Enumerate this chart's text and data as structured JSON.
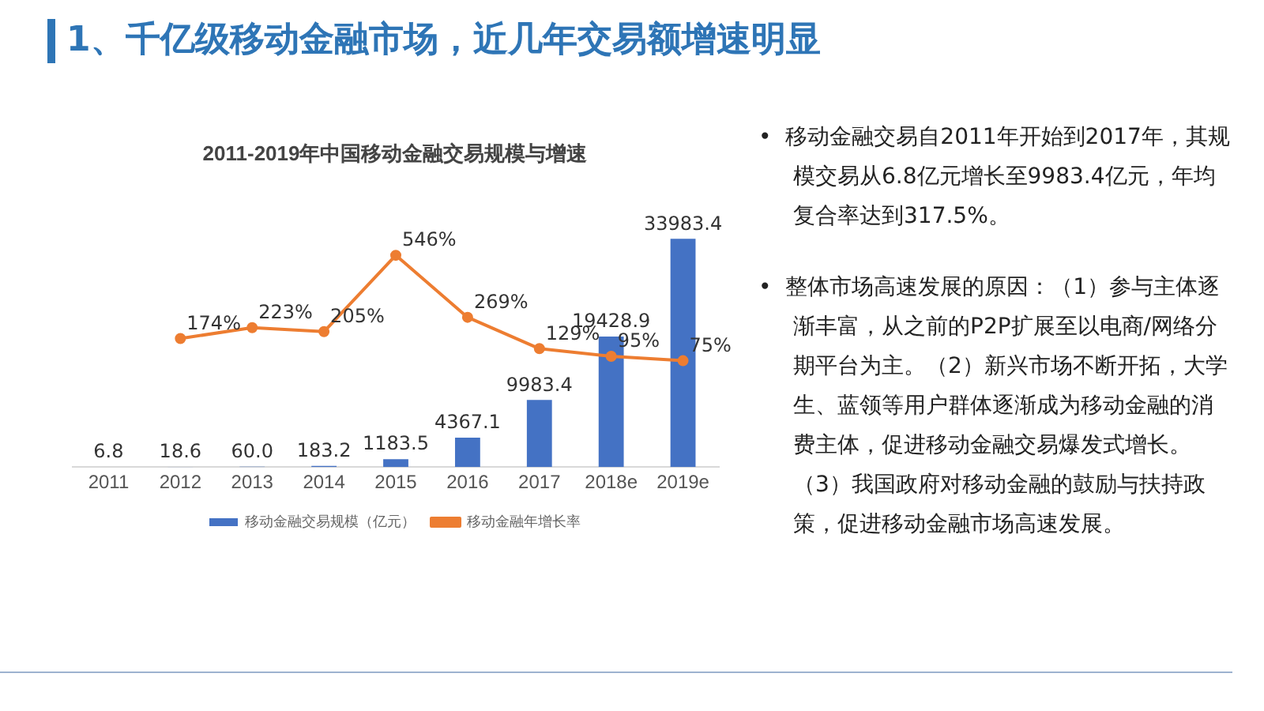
{
  "chart_data": {
    "type": "bar",
    "title": "1、千亿级移动金融市场，近几年交易额增速明显",
    "subtitle": "2011-2019年中国移动金融交易规模与增速",
    "categories": [
      "2011",
      "2012",
      "2013",
      "2014",
      "2015",
      "2016",
      "2017",
      "2018e",
      "2019e"
    ],
    "series": [
      {
        "name": "移动金融交易规模（亿元）",
        "color": "#4472c4",
        "values": [
          6.8,
          18.6,
          60.0,
          183.2,
          1183.5,
          4367.1,
          9983.4,
          19428.9,
          33983.4
        ],
        "value_labels": [
          "6.8",
          "18.6",
          "60.0",
          "183.2",
          "1183.5",
          "4367.1",
          "9983.4",
          "19428.9",
          "33983.4"
        ]
      },
      {
        "name": "移动金融年增长率",
        "type": "line",
        "axis": "y2",
        "color": "#ed7d31",
        "values": [
          null,
          174,
          223,
          205,
          546,
          269,
          129,
          95,
          75
        ],
        "value_labels": [
          null,
          "174%",
          "223%",
          "205%",
          "546%",
          "269%",
          "129%",
          "95%",
          "75%"
        ]
      }
    ],
    "tick_labels": "x",
    "grid": false,
    "legend": "bottom",
    "marker": "circle",
    "annotations": [
      "•  移动金融交易自2011年开始到2017年，其规模交易从6.8亿元增长至9983.4亿元，年均复合率达到317.5%。",
      "•  整体市场高速发展的原因：（1）参与主体逐渐丰富，从之前的P2P扩展至以电商/网络分期平台为主。（2）新兴市场不断开拓，大学生、蓝领等用户群体逐渐成为移动金融的消费主体，促进移动金融交易爆发式增长。（3）我国政府对移动金融的鼓励与扶持政策，促进移动金融市场高速发展。"
    ]
  }
}
